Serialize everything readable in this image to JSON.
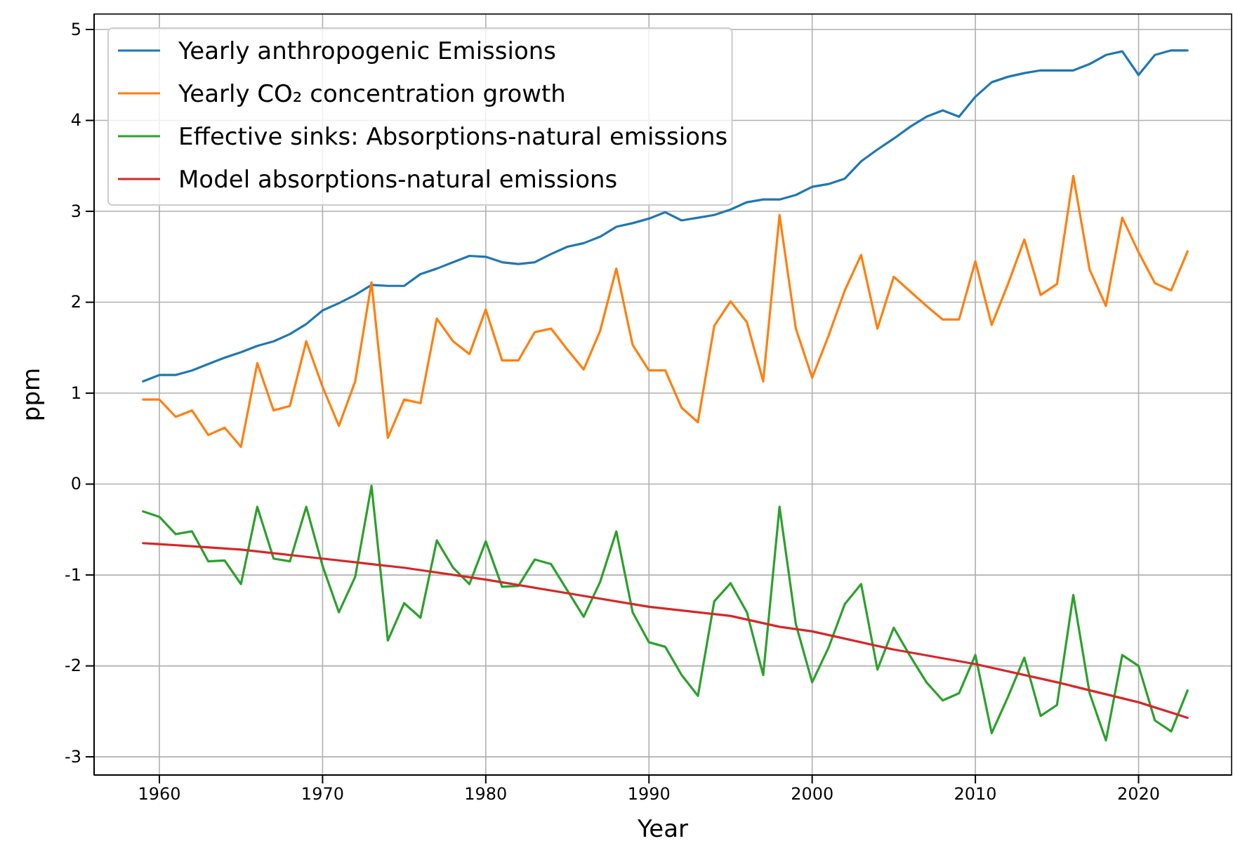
{
  "chart_data": {
    "type": "line",
    "xlabel": "Year",
    "ylabel": "ppm",
    "x": [
      1959,
      1960,
      1961,
      1962,
      1963,
      1964,
      1965,
      1966,
      1967,
      1968,
      1969,
      1970,
      1971,
      1972,
      1973,
      1974,
      1975,
      1976,
      1977,
      1978,
      1979,
      1980,
      1981,
      1982,
      1983,
      1984,
      1985,
      1986,
      1987,
      1988,
      1989,
      1990,
      1991,
      1992,
      1993,
      1994,
      1995,
      1996,
      1997,
      1998,
      1999,
      2000,
      2001,
      2002,
      2003,
      2004,
      2005,
      2006,
      2007,
      2008,
      2009,
      2010,
      2011,
      2012,
      2013,
      2014,
      2015,
      2016,
      2017,
      2018,
      2019,
      2020,
      2021,
      2022,
      2023
    ],
    "series": [
      {
        "name": "Yearly anthropogenic Emissions",
        "color": "#1f77b4",
        "values": [
          1.13,
          1.2,
          1.2,
          1.25,
          1.32,
          1.39,
          1.45,
          1.52,
          1.57,
          1.65,
          1.76,
          1.91,
          1.99,
          2.08,
          2.19,
          2.18,
          2.18,
          2.31,
          2.37,
          2.44,
          2.51,
          2.5,
          2.44,
          2.42,
          2.44,
          2.53,
          2.61,
          2.65,
          2.72,
          2.83,
          2.87,
          2.92,
          2.99,
          2.9,
          2.93,
          2.96,
          3.02,
          3.1,
          3.13,
          3.13,
          3.18,
          3.27,
          3.3,
          3.36,
          3.55,
          3.68,
          3.8,
          3.93,
          4.04,
          4.11,
          4.04,
          4.26,
          4.42,
          4.48,
          4.52,
          4.55,
          4.55,
          4.55,
          4.62,
          4.72,
          4.76,
          4.5,
          4.72,
          4.77,
          4.77
        ]
      },
      {
        "name": "Yearly CO₂ concentration growth",
        "color": "#ff7f0e",
        "values": [
          0.93,
          0.93,
          0.74,
          0.81,
          0.54,
          0.62,
          0.41,
          1.33,
          0.81,
          0.86,
          1.57,
          1.07,
          0.64,
          1.13,
          2.22,
          0.51,
          0.93,
          0.89,
          1.82,
          1.57,
          1.43,
          1.92,
          1.36,
          1.36,
          1.67,
          1.71,
          1.48,
          1.26,
          1.68,
          2.37,
          1.53,
          1.25,
          1.25,
          0.84,
          0.68,
          1.74,
          2.01,
          1.78,
          1.13,
          2.96,
          1.71,
          1.17,
          1.63,
          2.13,
          2.52,
          1.71,
          2.28,
          2.12,
          1.96,
          1.81,
          1.81,
          2.45,
          1.75,
          2.2,
          2.69,
          2.08,
          2.2,
          3.39,
          2.36,
          1.96,
          2.93,
          2.55,
          2.21,
          2.13,
          2.56
        ]
      },
      {
        "name": "Effective sinks: Absorptions-natural emissions",
        "color": "#2ca02c",
        "values": [
          -0.3,
          -0.36,
          -0.55,
          -0.52,
          -0.85,
          -0.84,
          -1.1,
          -0.25,
          -0.82,
          -0.85,
          -0.25,
          -0.9,
          -1.41,
          -1.02,
          -0.02,
          -1.72,
          -1.31,
          -1.47,
          -0.62,
          -0.92,
          -1.1,
          -0.63,
          -1.13,
          -1.12,
          -0.83,
          -0.88,
          -1.17,
          -1.46,
          -1.08,
          -0.52,
          -1.41,
          -1.74,
          -1.79,
          -2.1,
          -2.33,
          -1.29,
          -1.09,
          -1.41,
          -2.1,
          -0.25,
          -1.54,
          -2.18,
          -1.8,
          -1.32,
          -1.1,
          -2.04,
          -1.58,
          -1.89,
          -2.18,
          -2.38,
          -2.3,
          -1.88,
          -2.74,
          -2.34,
          -1.91,
          -2.55,
          -2.43,
          -1.22,
          -2.3,
          -2.82,
          -1.88,
          -2.0,
          -2.6,
          -2.72,
          -2.27
        ]
      },
      {
        "name": "Model absorptions-natural emissions",
        "color": "#d62728",
        "x": [
          1959,
          1960,
          1965,
          1970,
          1973,
          1975,
          1980,
          1985,
          1990,
          1995,
          1998,
          2000,
          2005,
          2010,
          2015,
          2020,
          2023
        ],
        "values": [
          -0.65,
          -0.66,
          -0.72,
          -0.82,
          -0.88,
          -0.92,
          -1.05,
          -1.2,
          -1.35,
          -1.45,
          -1.57,
          -1.62,
          -1.82,
          -1.98,
          -2.18,
          -2.4,
          -2.57
        ]
      }
    ],
    "xlim": [
      1956,
      2025.7
    ],
    "ylim": [
      -3.2,
      5.17
    ],
    "xticks": [
      1960,
      1970,
      1980,
      1990,
      2000,
      2010,
      2020
    ],
    "yticks": [
      -3,
      -2,
      -1,
      0,
      1,
      2,
      3,
      4,
      5
    ],
    "grid": true,
    "legend": "top left"
  }
}
